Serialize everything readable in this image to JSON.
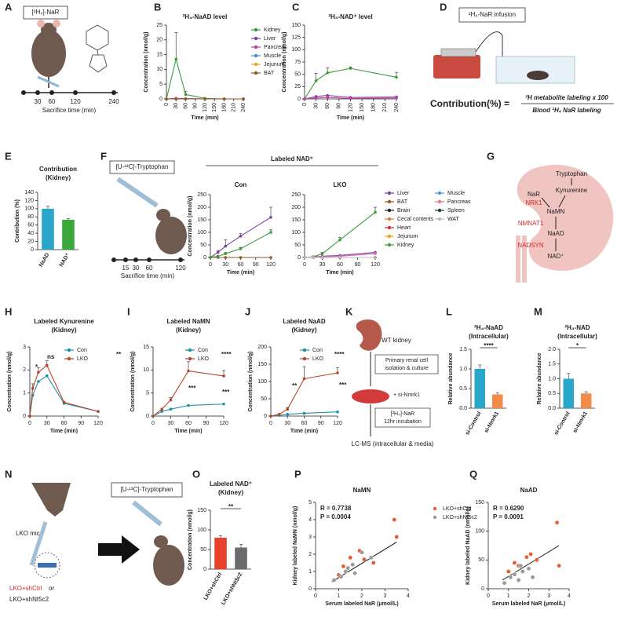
{
  "panels": [
    "A",
    "B",
    "C",
    "D",
    "E",
    "F",
    "G",
    "H",
    "I",
    "J",
    "K",
    "L",
    "M",
    "N",
    "O",
    "P",
    "Q"
  ],
  "figure_a": {
    "label": "[²H₄]-NaR",
    "times": [
      "30",
      "60",
      "120",
      "240"
    ],
    "axis": "Sacrifice time (min)"
  },
  "figure_d": {
    "title": "²H₄-NaR infusion",
    "lhs": "Contribution(%) =",
    "numerator": "²H metabolite labeling x 100",
    "denominator": "Blood ²H₄ NaR labeling"
  },
  "figure_f": {
    "label": "[U-¹³C]-Tryptophan",
    "times": [
      "15",
      "30",
      "60",
      "120"
    ],
    "axis": "Sacrifice time (min)",
    "group": "Labeled NAD⁺"
  },
  "figure_g": {
    "nodes": [
      "Tryptophan",
      "Kynurenine",
      "NaR",
      "NaMN",
      "NaAD",
      "NAD⁺"
    ],
    "enzymes": [
      "NRK1",
      "NMNAT1",
      "NADSYN"
    ]
  },
  "figure_k": {
    "steps": [
      "WT kidney",
      "Primary renal cell",
      "isolation & culture",
      "+ si-Nmrk1",
      "[²H₄]-NaR",
      "12hr incubation",
      "LC-MS (intracellular & media)"
    ]
  },
  "figure_n": {
    "mice": "LKO mice",
    "label": "[U-¹³C]-Tryptophan",
    "group1": "LKO+shCtrl",
    "or": "or",
    "group2": "LKO+shNt5c2"
  },
  "chart_data": [
    {
      "type": "line",
      "title": "²H₄-NaAD level",
      "xlabel": "Time (min)",
      "ylabel": "Concentration (nmol/g)",
      "x": [
        0,
        30,
        60,
        120,
        180,
        240
      ],
      "xlim": [
        0,
        240
      ],
      "xticks": [
        0,
        30,
        60,
        90,
        120,
        150,
        180,
        210,
        240
      ],
      "ylim": [
        0,
        25
      ],
      "yticks": [
        0,
        5,
        10,
        15,
        20,
        25
      ],
      "legend": true,
      "series": [
        {
          "name": "Kidney",
          "color": "#3c9a3c",
          "values": [
            0,
            13.5,
            1.5,
            0.2,
            0,
            0
          ],
          "errors": [
            null,
            9,
            1,
            null,
            null,
            null
          ]
        },
        {
          "name": "Liver",
          "color": "#7b3fa0",
          "values": [
            0,
            0.2,
            0.1,
            0,
            0,
            0
          ]
        },
        {
          "name": "Pancreas",
          "color": "#c23aa0",
          "values": [
            0,
            0.1,
            0.1,
            0,
            0,
            0
          ]
        },
        {
          "name": "Muscle",
          "color": "#3d8fd0",
          "values": [
            0,
            0,
            0,
            0,
            0,
            0
          ]
        },
        {
          "name": "Jejunum",
          "color": "#e2a81c",
          "values": [
            0,
            0,
            0,
            0,
            0,
            0
          ]
        },
        {
          "name": "BAT",
          "color": "#8a5a2a",
          "values": [
            0,
            0,
            0,
            0,
            0,
            0
          ]
        }
      ]
    },
    {
      "type": "line",
      "title": "²H₃-NAD⁺ level",
      "xlabel": "Time (min)",
      "ylabel": "Concentration (nmol/g)",
      "x": [
        0,
        30,
        60,
        120,
        240
      ],
      "xlim": [
        0,
        240
      ],
      "xticks": [
        0,
        30,
        60,
        90,
        120,
        150,
        180,
        210,
        240
      ],
      "ylim": [
        0,
        150
      ],
      "yticks": [
        0,
        25,
        50,
        75,
        100,
        125,
        150
      ],
      "series": [
        {
          "color": "#3c9a3c",
          "values": [
            0,
            37,
            53,
            62,
            44
          ],
          "errors": [
            null,
            15,
            10,
            3,
            10
          ]
        },
        {
          "color": "#7b3fa0",
          "values": [
            0,
            5,
            7,
            3,
            4
          ]
        },
        {
          "color": "#c23aa0",
          "values": [
            0,
            2,
            3,
            1,
            2
          ]
        }
      ]
    },
    {
      "type": "bar",
      "title": "Contribution",
      "subtitle": "(Kidney)",
      "ylabel": "Contribution (%)",
      "categories": [
        "NaAD",
        "NAD⁺"
      ],
      "values": [
        100,
        73
      ],
      "errors": [
        6,
        3
      ],
      "colors": [
        "#2ba6cb",
        "#3aa83a"
      ],
      "ylim": [
        0,
        140
      ],
      "yticks": [
        0,
        20,
        40,
        60,
        80,
        100,
        120,
        140
      ]
    },
    {
      "type": "line",
      "title": "Con",
      "xlabel": "Time (min)",
      "ylabel": "Concentration (nmol/g)",
      "x": [
        0,
        15,
        30,
        60,
        120
      ],
      "xlim": [
        0,
        120
      ],
      "xticks": [
        0,
        30,
        60,
        90,
        120
      ],
      "ylim": [
        0,
        250
      ],
      "yticks": [
        0,
        50,
        100,
        150,
        200,
        250
      ],
      "series": [
        {
          "color": "#8a5a2a",
          "values": [
            0,
            0,
            0,
            0,
            0
          ]
        },
        {
          "color": "#7b3fa0",
          "values": [
            0,
            20,
            45,
            85,
            160
          ],
          "errors": [
            null,
            8,
            25,
            10,
            40
          ]
        },
        {
          "color": "#3c9a3c",
          "values": [
            0,
            5,
            15,
            35,
            100
          ],
          "errors": [
            null,
            null,
            5,
            5,
            10
          ]
        }
      ]
    },
    {
      "type": "line",
      "title": "LKO",
      "xlabel": "Time (min)",
      "x": [
        0,
        15,
        30,
        60,
        120
      ],
      "xlim": [
        0,
        120
      ],
      "xticks": [
        0,
        30,
        60,
        90,
        120
      ],
      "ylim": [
        0,
        250
      ],
      "yticks": [
        0,
        50,
        100,
        150,
        200,
        250
      ],
      "legend": true,
      "series": [
        {
          "name": "Liver",
          "color": "#7b3fa0",
          "values": [
            0,
            2,
            5,
            8,
            20
          ]
        },
        {
          "name": "BAT",
          "color": "#8a5a2a",
          "values": [
            0,
            0,
            0,
            0,
            0
          ]
        },
        {
          "name": "Brain",
          "color": "#222222",
          "values": [
            0,
            0,
            0,
            0,
            0
          ]
        },
        {
          "name": "Cecal contents",
          "color": "#e07a30",
          "values": [
            0,
            0,
            0,
            0,
            0
          ]
        },
        {
          "name": "Heart",
          "color": "#d03030",
          "values": [
            0,
            0,
            0,
            0,
            0
          ]
        },
        {
          "name": "Jejunum",
          "color": "#e2a81c",
          "values": [
            0,
            0,
            0,
            0,
            0
          ]
        },
        {
          "name": "Kidney",
          "color": "#3c9a3c",
          "values": [
            0,
            3,
            15,
            70,
            180
          ],
          "errors": [
            null,
            null,
            5,
            10,
            20
          ]
        },
        {
          "name": "Muscle",
          "color": "#3d9fd6",
          "values": [
            0,
            0,
            0,
            0,
            0
          ]
        },
        {
          "name": "Pancreas",
          "color": "#e070b0",
          "values": [
            0,
            1,
            3,
            5,
            15
          ]
        },
        {
          "name": "Spleen",
          "color": "#333333",
          "values": [
            0,
            0,
            0,
            0,
            0
          ]
        },
        {
          "name": "WAT",
          "color": "#bbbbbb",
          "values": [
            0,
            0,
            0,
            0,
            0
          ]
        }
      ]
    },
    {
      "type": "line",
      "title": "Labeled Kynurenine",
      "subtitle": "(Kidney)",
      "xlabel": "Time (min)",
      "ylabel": "Concentration (nmol/g)",
      "x": [
        0,
        5,
        15,
        30,
        60,
        120
      ],
      "xlim": [
        0,
        120
      ],
      "xticks": [
        0,
        30,
        60,
        90,
        120
      ],
      "ylim": [
        0,
        3
      ],
      "yticks": [
        0,
        1,
        2,
        3
      ],
      "legend": true,
      "annotations": [
        "*",
        "ns",
        "**"
      ],
      "series": [
        {
          "name": "Con",
          "color": "#1f8fa6",
          "values": [
            0,
            0.9,
            1.5,
            1.75,
            0.55,
            0.2
          ]
        },
        {
          "name": "LKO",
          "color": "#b5482a",
          "values": [
            0,
            1.2,
            1.9,
            2.2,
            0.6,
            0.2
          ],
          "errors": [
            null,
            0.2,
            0.2,
            0.2,
            null,
            null
          ]
        }
      ]
    },
    {
      "type": "line",
      "title": "Labeled NaMN",
      "subtitle": "(Kidney)",
      "xlabel": "Time (min)",
      "ylabel": "Concentration (nmol/g)",
      "x": [
        0,
        15,
        30,
        60,
        120
      ],
      "xlim": [
        0,
        120
      ],
      "xticks": [
        0,
        30,
        60,
        90,
        120
      ],
      "ylim": [
        0,
        15
      ],
      "yticks": [
        0,
        5,
        10,
        15
      ],
      "legend": true,
      "annotations": [
        "****",
        "***",
        "***"
      ],
      "series": [
        {
          "name": "Con",
          "color": "#1f8fa6",
          "values": [
            0,
            1,
            1.5,
            2.3,
            2.6
          ]
        },
        {
          "name": "LKO",
          "color": "#b5482a",
          "values": [
            0,
            1.5,
            3.5,
            9.8,
            8.7
          ],
          "errors": [
            null,
            null,
            0.5,
            2,
            1.2
          ]
        }
      ]
    },
    {
      "type": "line",
      "title": "Labeled NaAD",
      "subtitle": "(Kidney)",
      "xlabel": "Time (min)",
      "ylabel": "Concentration (nmol/g)",
      "x": [
        0,
        15,
        30,
        60,
        120
      ],
      "xlim": [
        0,
        120
      ],
      "xticks": [
        0,
        30,
        60,
        90,
        120
      ],
      "ylim": [
        0,
        200
      ],
      "yticks": [
        0,
        50,
        100,
        150,
        200
      ],
      "legend": true,
      "annotations": [
        "****",
        "**",
        "***"
      ],
      "series": [
        {
          "name": "Con",
          "color": "#1f8fa6",
          "values": [
            0,
            2,
            5,
            8,
            12
          ]
        },
        {
          "name": "LKO",
          "color": "#b5482a",
          "values": [
            0,
            5,
            20,
            108,
            125
          ],
          "errors": [
            null,
            null,
            5,
            35,
            15
          ]
        }
      ]
    },
    {
      "type": "bar",
      "title": "²H₄-NaAD",
      "subtitle": "(Intracellular)",
      "ylabel": "Relative abundance",
      "categories": [
        "si-Control",
        "si-Nmrk1"
      ],
      "values": [
        1.0,
        0.35
      ],
      "errors": [
        0.1,
        0.04
      ],
      "colors": [
        "#2ba6cb",
        "#f28a4a"
      ],
      "ylim": [
        0,
        1.5
      ],
      "yticks": [
        {
          "value": 0,
          "label": "0.0"
        },
        0.5,
        {
          "value": 1,
          "label": "1.0"
        },
        1.5
      ],
      "annotations": [
        "****"
      ]
    },
    {
      "type": "bar",
      "title": "²H₃-NAD",
      "subtitle": "(Intracellular)",
      "ylabel": "Relative abundance",
      "categories": [
        "si-Control",
        "si-Nmrk1"
      ],
      "values": [
        1.0,
        0.5
      ],
      "errors": [
        0.18,
        0.06
      ],
      "colors": [
        "#2ba6cb",
        "#f28a4a"
      ],
      "ylim": [
        0,
        2
      ],
      "yticks": [
        {
          "value": 0,
          "label": "0.0"
        },
        0.5,
        {
          "value": 1,
          "label": "1.0"
        },
        1.5,
        {
          "value": 2,
          "label": "2.0"
        }
      ],
      "annotations": [
        "*"
      ]
    },
    {
      "type": "bar",
      "title": "Labeled NAD⁺",
      "subtitle": "(Kidney)",
      "ylabel": "Concentration (nmol/g)",
      "categories": [
        "LKO+shCtrl",
        "LKO+shNt5c2"
      ],
      "values": [
        80,
        55
      ],
      "errors": [
        5,
        8
      ],
      "colors": [
        "#e8432a",
        "#6b6b6b"
      ],
      "ylim": [
        0,
        150
      ],
      "yticks": [
        0,
        50,
        100,
        150
      ],
      "annotations": [
        "**"
      ]
    },
    {
      "type": "scatter",
      "title": "NaMN",
      "xlabel": "Serum labeled NaR (μmol/L)",
      "ylabel": "Kidney labeled NaMN (nmol/g)",
      "xlim": [
        0,
        4
      ],
      "xticks": [
        0,
        1,
        2,
        3,
        4
      ],
      "ylim": [
        0,
        5
      ],
      "yticks": [
        0,
        1,
        2,
        3,
        4,
        5
      ],
      "legend": true,
      "annotations": [
        "R = 0.7738",
        "P = 0.0004"
      ],
      "trendline": {
        "x": [
          0.7,
          3.5
        ],
        "y": [
          0.4,
          2.7
        ]
      },
      "series": [
        {
          "name": "LKO+shCtrl",
          "color": "#e0603a",
          "x": [
            1.0,
            1.2,
            1.5,
            1.9,
            2.1,
            3.4,
            3.5,
            2.5
          ],
          "values": [
            0.8,
            1.3,
            1.8,
            2.2,
            1.7,
            4.0,
            3.0,
            1.5
          ]
        },
        {
          "name": "LKO+shNt5c2",
          "color": "#999999",
          "x": [
            0.8,
            1.1,
            1.3,
            1.4,
            1.7,
            2.0,
            2.4,
            1.6
          ],
          "values": [
            0.5,
            0.7,
            1.0,
            1.2,
            0.9,
            2.1,
            1.8,
            1.4
          ]
        }
      ]
    },
    {
      "type": "scatter",
      "title": "NaAD",
      "xlabel": "Serum labeled NaR (μmol/L)",
      "ylabel": "Kidney labeled NaAD (nmol/g)",
      "xlim": [
        0,
        4
      ],
      "xticks": [
        0,
        1,
        2,
        3,
        4
      ],
      "ylim": [
        0,
        150
      ],
      "yticks": [
        0,
        50,
        100,
        150
      ],
      "annotations": [
        "R = 0.6290",
        "P = 0.0091"
      ],
      "trendline": {
        "x": [
          0.7,
          3.5
        ],
        "y": [
          15,
          75
        ]
      },
      "series": [
        {
          "color": "#e0603a",
          "x": [
            1.0,
            1.3,
            1.5,
            1.9,
            2.1,
            3.4,
            3.5,
            2.4
          ],
          "values": [
            30,
            45,
            40,
            55,
            60,
            115,
            40,
            50
          ]
        },
        {
          "color": "#999999",
          "x": [
            0.8,
            1.1,
            1.3,
            1.5,
            1.7,
            2.0,
            2.2,
            1.6
          ],
          "values": [
            10,
            20,
            25,
            15,
            30,
            35,
            20,
            40
          ]
        }
      ]
    }
  ]
}
